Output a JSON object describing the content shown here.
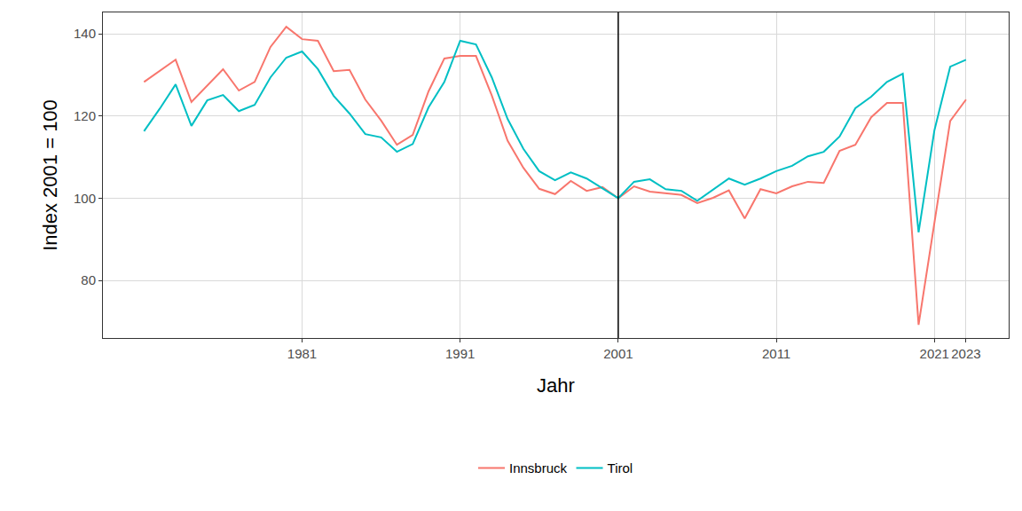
{
  "chart_data": {
    "type": "line",
    "x_label": "Jahr",
    "y_label": "Index 2001 = 100",
    "x": [
      1971,
      1972,
      1973,
      1974,
      1975,
      1976,
      1977,
      1978,
      1979,
      1980,
      1981,
      1982,
      1983,
      1984,
      1985,
      1986,
      1987,
      1988,
      1989,
      1990,
      1991,
      1992,
      1993,
      1994,
      1995,
      1996,
      1997,
      1998,
      1999,
      2000,
      2001,
      2002,
      2003,
      2004,
      2005,
      2006,
      2007,
      2008,
      2009,
      2010,
      2011,
      2012,
      2013,
      2014,
      2015,
      2016,
      2017,
      2018,
      2019,
      2020,
      2021,
      2022,
      2023
    ],
    "series": [
      {
        "name": "Innsbruck",
        "color": "#F8766D",
        "values": [
          128.3,
          131.0,
          133.7,
          123.4,
          127.5,
          131.4,
          126.2,
          128.3,
          136.8,
          141.7,
          138.7,
          138.3,
          130.9,
          131.2,
          124.0,
          118.9,
          113.0,
          115.4,
          126.0,
          134.0,
          134.6,
          134.6,
          125.0,
          114.0,
          107.4,
          102.3,
          101.0,
          104.2,
          101.8,
          102.7,
          100.0,
          102.9,
          101.6,
          101.2,
          100.8,
          98.8,
          100.1,
          101.9,
          95.1,
          102.2,
          101.2,
          102.9,
          104.0,
          103.7,
          111.5,
          113.0,
          119.7,
          123.2,
          123.2,
          69.2,
          94.0,
          118.8,
          124.0
        ]
      },
      {
        "name": "Tirol",
        "color": "#00BFC4",
        "values": [
          116.3,
          121.8,
          127.7,
          117.6,
          123.8,
          125.1,
          121.2,
          122.7,
          129.4,
          134.2,
          135.7,
          131.4,
          124.9,
          120.6,
          115.6,
          114.8,
          111.3,
          113.2,
          122.1,
          128.3,
          138.3,
          137.4,
          129.4,
          119.3,
          112.0,
          106.6,
          104.4,
          106.3,
          104.8,
          102.4,
          100.0,
          104.0,
          104.6,
          102.2,
          101.8,
          99.4,
          102.2,
          104.8,
          103.3,
          104.8,
          106.6,
          107.9,
          110.2,
          111.3,
          115.0,
          121.9,
          124.7,
          128.3,
          130.3,
          91.7,
          116.5,
          132.0,
          133.7
        ]
      }
    ],
    "xlim": [
      1968.4,
      2025.7
    ],
    "ylim": [
      66.0,
      145.2
    ],
    "xticks": [
      1981,
      1991,
      2001,
      2011,
      2021,
      2023
    ],
    "yticks": [
      80,
      100,
      120,
      140
    ],
    "vline_x": 2001,
    "grid": true,
    "legend": "bottom"
  }
}
